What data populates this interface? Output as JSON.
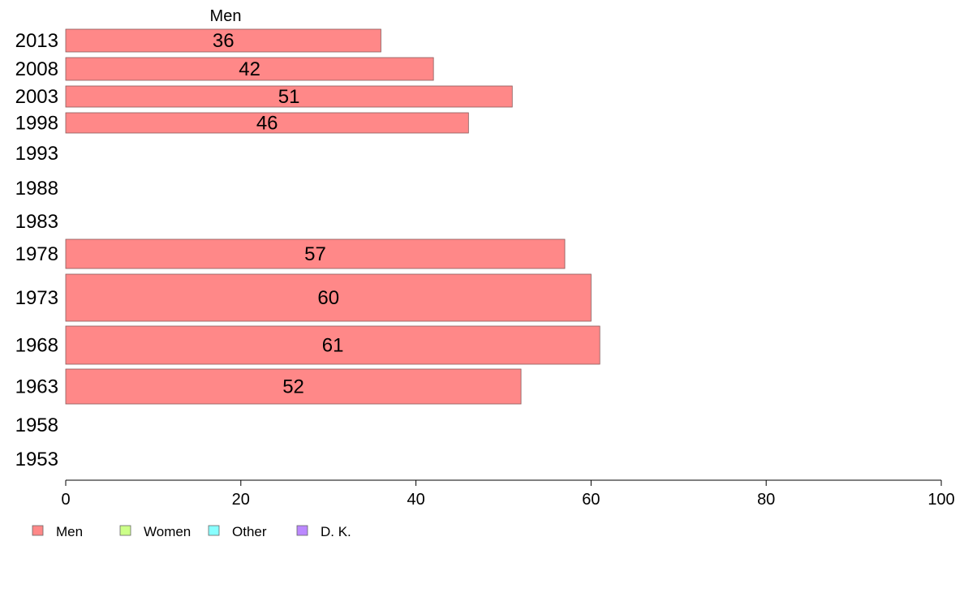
{
  "chart_data": {
    "type": "bar",
    "orientation": "horizontal",
    "title": "",
    "series_title": "Men",
    "xlabel": "",
    "ylabel": "",
    "xlim": [
      0,
      100
    ],
    "x_ticks": [
      0,
      20,
      40,
      60,
      80,
      100
    ],
    "categories": [
      "2013",
      "2008",
      "2003",
      "1998",
      "1993",
      "1988",
      "1983",
      "1978",
      "1973",
      "1968",
      "1963",
      "1958",
      "1953"
    ],
    "series": [
      {
        "name": "Men",
        "color": "#ff8888",
        "values": [
          36,
          42,
          51,
          46,
          null,
          null,
          null,
          57,
          60,
          61,
          52,
          null,
          null
        ]
      }
    ],
    "legend": {
      "placement": "bottom-left",
      "items": [
        {
          "label": "Men",
          "color": "#ff8888"
        },
        {
          "label": "Women",
          "color": "#ccff88"
        },
        {
          "label": "Other",
          "color": "#88ffff"
        },
        {
          "label": "D. K.",
          "color": "#bb88ff"
        }
      ]
    },
    "grid": false
  }
}
